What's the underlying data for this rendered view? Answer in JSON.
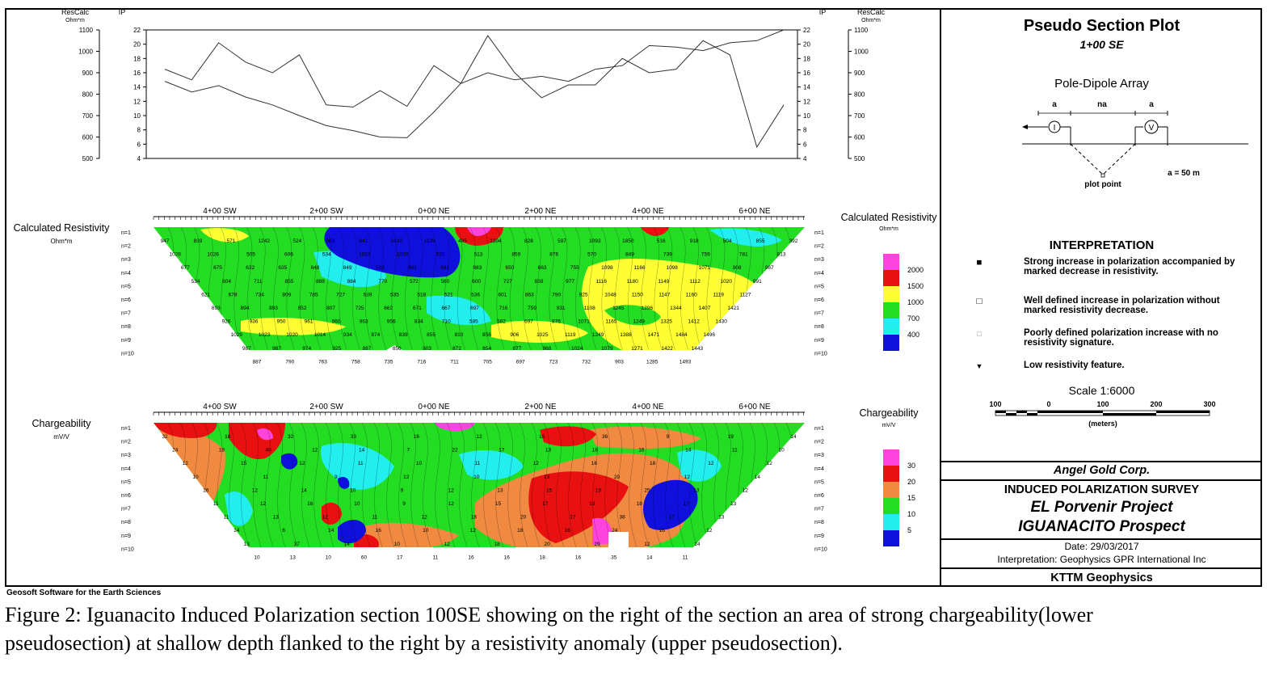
{
  "colors": {
    "magenta": "#ff44dd",
    "red": "#e81010",
    "orange": "#f08a40",
    "yellow": "#ffff33",
    "green": "#22dd22",
    "cyan": "#22eeee",
    "blue": "#1010dd"
  },
  "header": {
    "left_rescalc": "ResCalc",
    "left_ohm": "Ohm*m",
    "left_ip": "IP",
    "right_ip": "IP",
    "right_rescalc": "ResCalc",
    "right_ohm": "Ohm*m"
  },
  "profile_chart": {
    "type": "line",
    "rescalc_ticks": [
      "1100",
      "1000",
      "900",
      "800",
      "700",
      "600",
      "500"
    ],
    "ip_ticks": [
      "22",
      "20",
      "18",
      "16",
      "14",
      "12",
      "10",
      "8",
      "6",
      "4"
    ],
    "ip_ylim": [
      4,
      22
    ],
    "station_index": [
      0,
      1,
      2,
      3,
      4,
      5,
      6,
      7,
      8,
      9,
      10,
      11,
      12,
      13,
      14,
      15,
      16,
      17,
      18,
      19,
      20,
      21,
      22,
      23
    ],
    "series": [
      {
        "values": [
          16.5,
          15.0,
          20.2,
          17.5,
          16.0,
          18.5,
          11.5,
          11.2,
          13.5,
          11.3,
          17.0,
          14.5,
          21.2,
          16.0,
          12.5,
          14.3,
          14.3,
          18.0,
          16.0,
          16.5,
          20.5,
          18.5,
          5.6,
          11.5
        ]
      },
      {
        "values": [
          14.8,
          13.3,
          14.2,
          12.6,
          11.5,
          10.0,
          8.6,
          7.9,
          7.0,
          6.9,
          10.5,
          14.5,
          16.0,
          15.0,
          15.5,
          14.8,
          16.5,
          17.0,
          19.8,
          19.6,
          19.1,
          20.2,
          20.5,
          22.0
        ]
      }
    ]
  },
  "stations": [
    "4+00 SW",
    "2+00 SW",
    "0+00 NE",
    "2+00 NE",
    "4+00 NE",
    "6+00 NE"
  ],
  "levels": [
    "n=1",
    "n=2",
    "n=3",
    "n=4",
    "n=5",
    "n=6",
    "n=7",
    "n=8",
    "n=9",
    "n=10"
  ],
  "resistivity": {
    "title": "Calculated Resistivity",
    "unit": "Ohm*m",
    "legend_title": "Calculated Resistivity",
    "legend_unit": "Ohm*m",
    "legend_values": [
      "2000",
      "1500",
      "1000",
      "700",
      "400"
    ],
    "chart_data": {
      "type": "heatmap",
      "color_scale": [
        {
          "value": 2000,
          "color": "magenta"
        },
        {
          "value": 1500,
          "color": "red"
        },
        {
          "value": 1000,
          "color": "yellow"
        },
        {
          "value": 700,
          "color": "green"
        },
        {
          "value": 400,
          "color": "cyan"
        },
        {
          "value": 0,
          "color": "blue"
        }
      ],
      "rows": [
        [
          "947",
          "839",
          "571",
          "1242",
          "524",
          "969",
          "941",
          "2419",
          "1139",
          "495",
          "1304",
          "828",
          "597",
          "1093",
          "1850",
          "516",
          "918",
          "504",
          "855",
          "392"
        ],
        [
          "1028",
          "1026",
          "505",
          "606",
          "534",
          "1033",
          "1030",
          "530",
          "513",
          "859",
          "876",
          "570",
          "849",
          "739",
          "759",
          "781",
          "813"
        ],
        [
          "677",
          "675",
          "632",
          "635",
          "648",
          "849",
          "503",
          "901",
          "881",
          "883",
          "650",
          "663",
          "755",
          "1098",
          "1166",
          "1098",
          "1071",
          "908",
          "987"
        ],
        [
          "534",
          "604",
          "711",
          "855",
          "888",
          "884",
          "770",
          "572",
          "560",
          "600",
          "727",
          "838",
          "977",
          "1116",
          "1180",
          "1149",
          "1112",
          "1020",
          "991"
        ],
        [
          "621",
          "678",
          "734",
          "809",
          "785",
          "727",
          "639",
          "535",
          "518",
          "521",
          "536",
          "601",
          "863",
          "790",
          "925",
          "1048",
          "1150",
          "1147",
          "1160",
          "1119",
          "1127"
        ],
        [
          "893",
          "894",
          "893",
          "852",
          "807",
          "725",
          "662",
          "671",
          "667",
          "697",
          "716",
          "759",
          "931",
          "1108",
          "1245",
          "1296",
          "1344",
          "1407",
          "1421"
        ],
        [
          "926",
          "936",
          "950",
          "961",
          "960",
          "963",
          "956",
          "834",
          "710",
          "585",
          "582",
          "697",
          "876",
          "1071",
          "1165",
          "1249",
          "1325",
          "1412",
          "1430"
        ],
        [
          "1029",
          "1023",
          "1020",
          "1014",
          "934",
          "874",
          "839",
          "855",
          "810",
          "856",
          "906",
          "1025",
          "1119",
          "1249",
          "1388",
          "1471",
          "1484",
          "1496"
        ],
        [
          "987",
          "987",
          "974",
          "925",
          "887",
          "856",
          "903",
          "872",
          "854",
          "877",
          "968",
          "1024",
          "1079",
          "1271",
          "1422",
          "1443"
        ],
        [
          "887",
          "790",
          "763",
          "758",
          "735",
          "716",
          "711",
          "705",
          "697",
          "723",
          "732",
          "903",
          "1285",
          "1493"
        ]
      ]
    }
  },
  "chargeability": {
    "title": "Chargeability",
    "unit": "mV/V",
    "legend_title": "Chargeability",
    "legend_unit": "mV/V",
    "legend_values": [
      "30",
      "20",
      "15",
      "10",
      "5"
    ],
    "chart_data": {
      "type": "heatmap",
      "color_scale": [
        {
          "value": 30,
          "color": "magenta"
        },
        {
          "value": 20,
          "color": "red"
        },
        {
          "value": 15,
          "color": "orange"
        },
        {
          "value": 10,
          "color": "green"
        },
        {
          "value": 5,
          "color": "cyan"
        },
        {
          "value": 0,
          "color": "blue"
        }
      ],
      "rows": [
        [
          "32",
          "16",
          "32",
          "33",
          "16",
          "12",
          "15",
          "36",
          "9",
          "19",
          "14"
        ],
        [
          "24",
          "18",
          "40",
          "12",
          "14",
          "7",
          "22",
          "17",
          "13",
          "18",
          "16",
          "14",
          "11",
          "10"
        ],
        [
          "12",
          "15",
          "12",
          "11",
          "10",
          "11",
          "12",
          "16",
          "18",
          "12",
          "12"
        ],
        [
          "10",
          "11",
          "9",
          "12",
          "10",
          "13",
          "20",
          "12",
          "14"
        ],
        [
          "16",
          "12",
          "14",
          "10",
          "9",
          "12",
          "13",
          "15",
          "19",
          "25",
          "13",
          "12"
        ],
        [
          "11",
          "12",
          "16",
          "10",
          "9",
          "12",
          "15",
          "17",
          "19",
          "18",
          "17",
          "13"
        ],
        [
          "11",
          "13",
          "12",
          "11",
          "12",
          "18",
          "20",
          "17",
          "38",
          "17",
          "13"
        ],
        [
          "14",
          "6",
          "14",
          "16",
          "10",
          "12",
          "18",
          "16",
          "24",
          "16",
          "12"
        ],
        [
          "13",
          "37",
          "14",
          "10",
          "12",
          "18",
          "20",
          "29",
          "12",
          "14"
        ],
        [
          "10",
          "13",
          "10",
          "60",
          "17",
          "11",
          "16",
          "16",
          "18",
          "16",
          "35",
          "14",
          "11"
        ]
      ]
    }
  },
  "plot_info": {
    "title": "Pseudo Section Plot",
    "subtitle": "1+00 SE",
    "array": "Pole-Dipole Array",
    "dim_a1": "a",
    "dim_na": "na",
    "dim_a2": "a",
    "current_symbol": "I",
    "voltage_symbol": "V",
    "plot_point": "plot point",
    "spacing": "a = 50 m"
  },
  "interpretation": {
    "heading": "INTERPRETATION",
    "items": [
      {
        "symbol": "■",
        "text": "Strong increase in polarization accompanied by marked decrease in resistivity."
      },
      {
        "symbol": "□",
        "text": "Well defined increase in polarization without marked resistivity decrease."
      },
      {
        "symbol": "□",
        "text": "Poorly defined polarization increase with no resistivity signature."
      },
      {
        "symbol": "▼",
        "text": "Low resistivity feature."
      }
    ]
  },
  "scale": {
    "label": "Scale 1:6000",
    "ticks": [
      "100",
      "0",
      "100",
      "200",
      "300"
    ],
    "unit": "(meters)"
  },
  "title_block": {
    "company": "Angel Gold Corp.",
    "survey": "INDUCED POLARIZATION SURVEY",
    "project": "EL Porvenir Project",
    "prospect": "IGUANACITO Prospect",
    "date": "Date: 29/03/2017",
    "interpretation": "Interpretation: Geophysics GPR International Inc",
    "contractor": "KTTM Geophysics"
  },
  "credit": "Geosoft Software for the Earth Sciences",
  "caption": "Figure 2: Iguanacito Induced Polarization section 100SE showing on the right of the section an area of strong chargeability(lower pseudosection) at shallow depth flanked to the right by a resistivity anomaly (upper pseudosection)."
}
